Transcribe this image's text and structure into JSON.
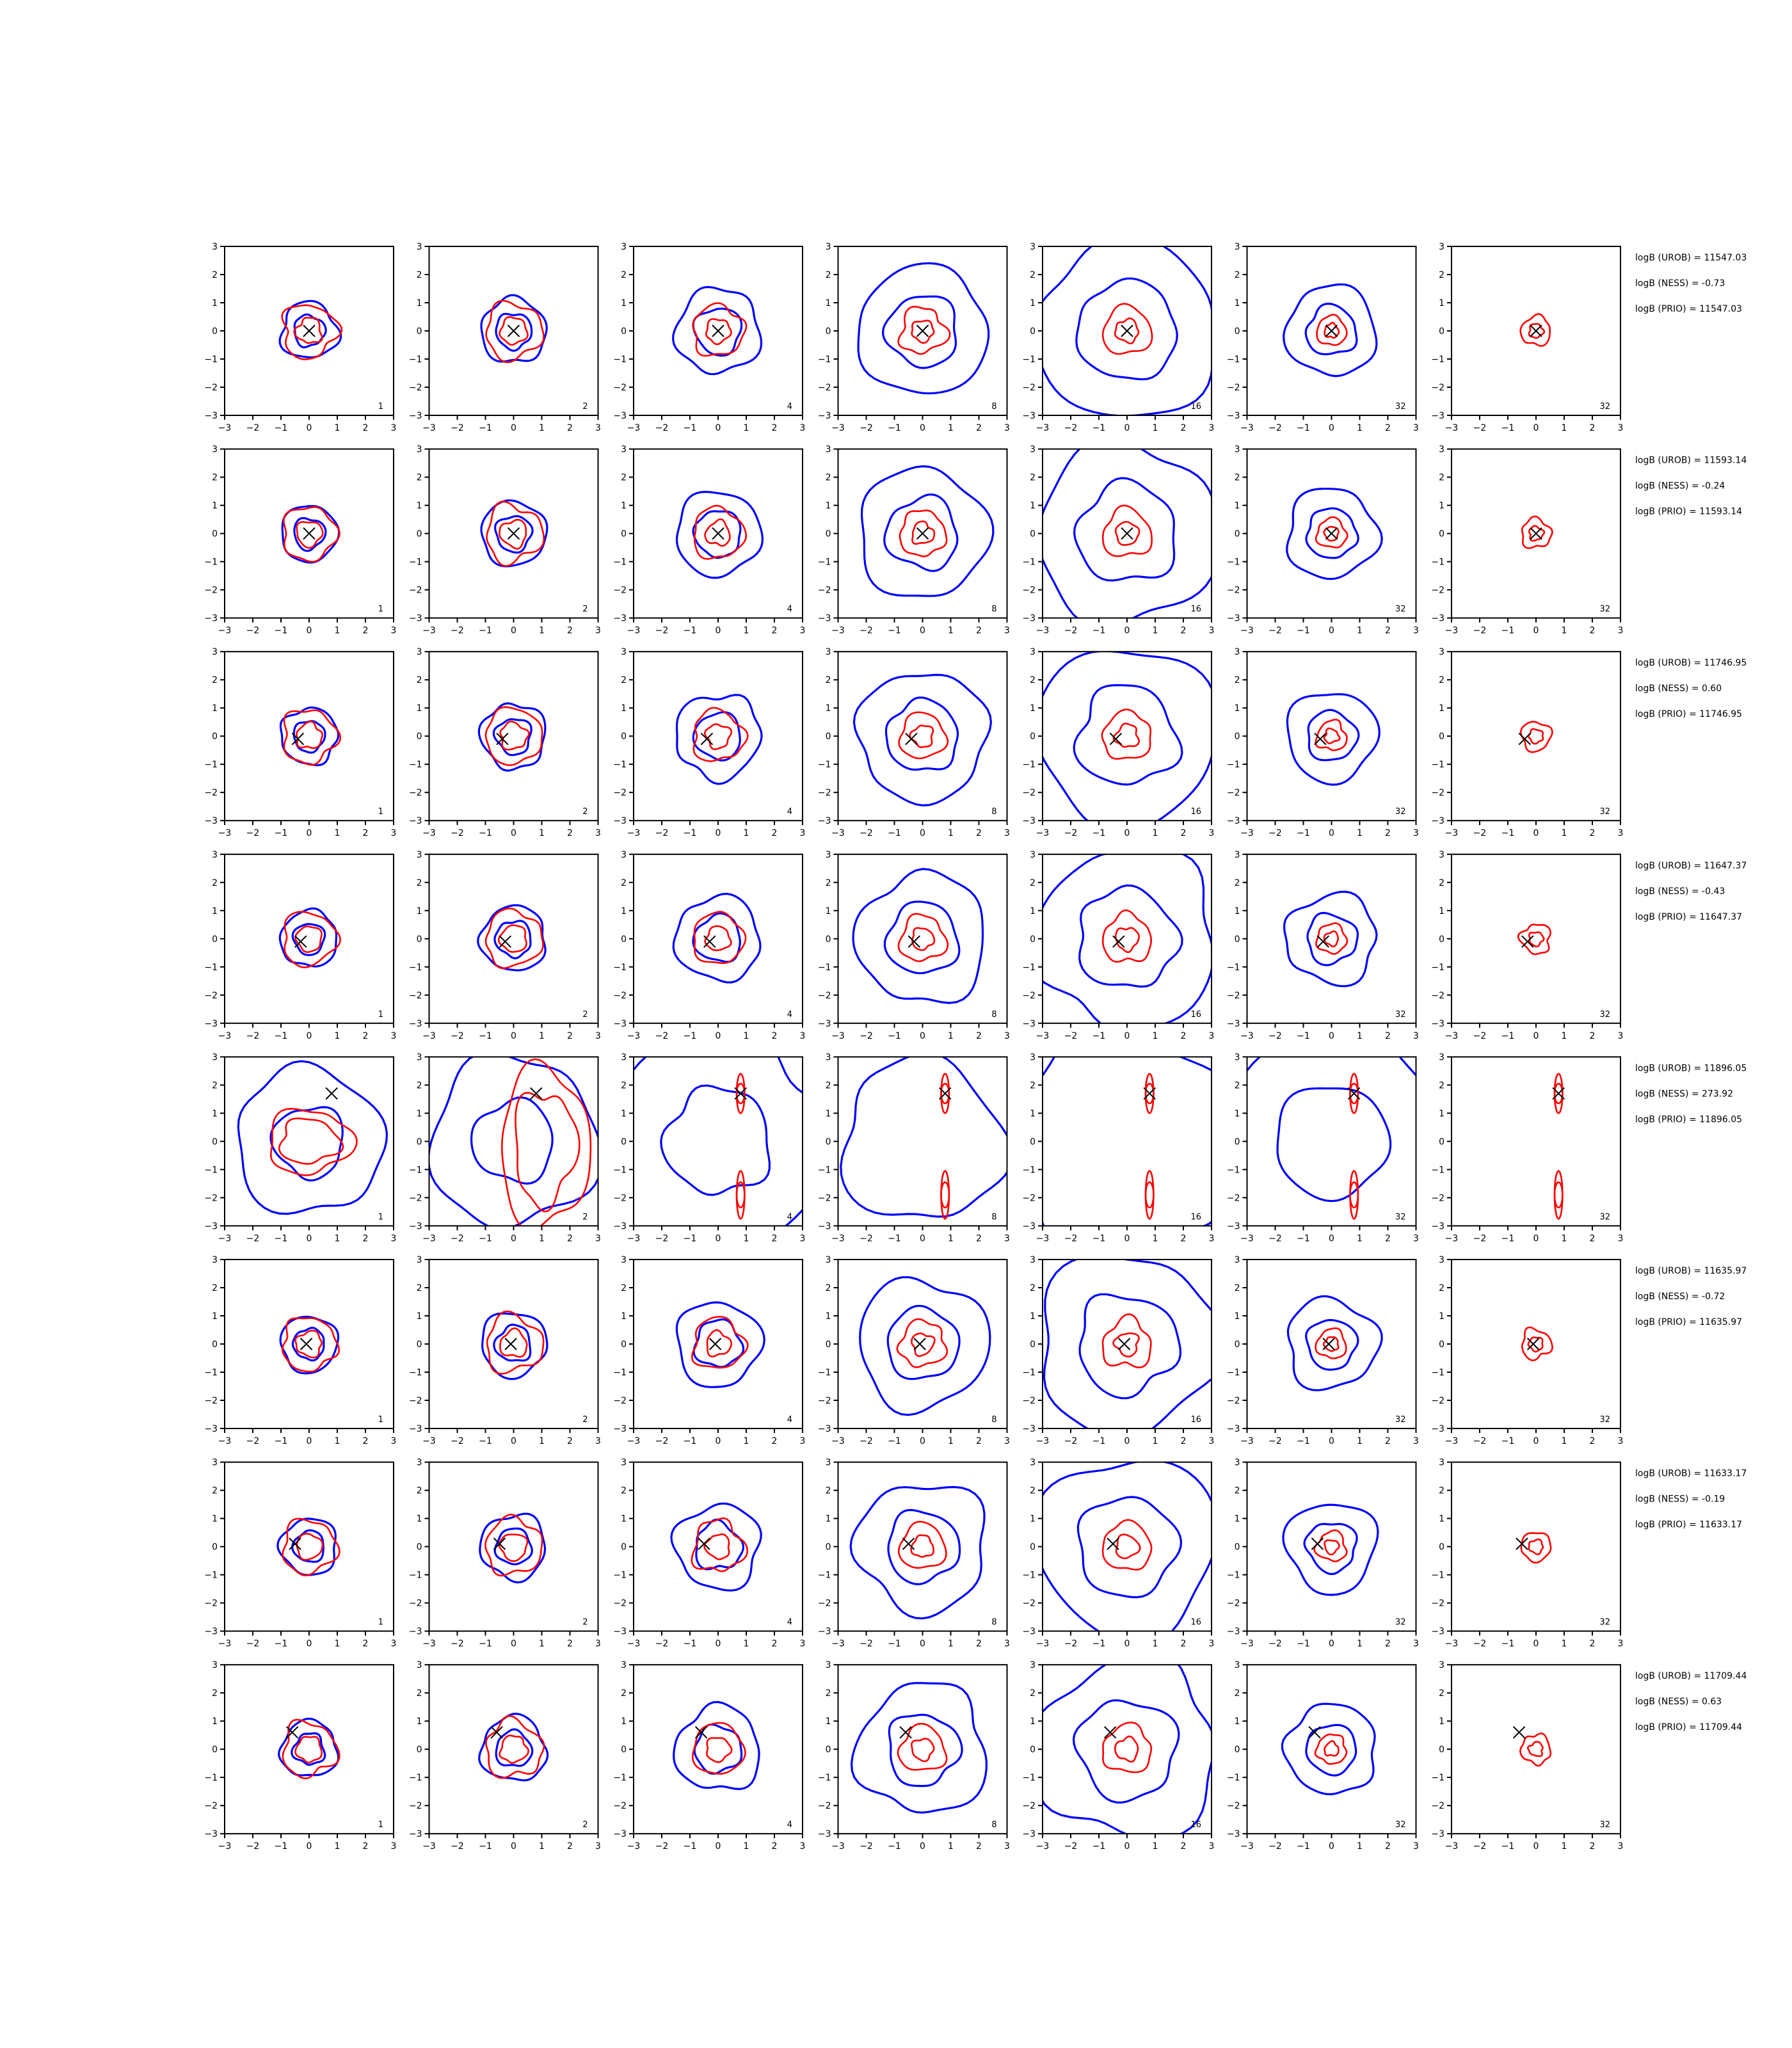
{
  "chart_data": {
    "type": "contour",
    "grid": {
      "rows": 8,
      "cols": 7
    },
    "xlim": [
      -3,
      3
    ],
    "ylim": [
      -3,
      3
    ],
    "ticks": [
      -3,
      -2,
      -1,
      0,
      1,
      2,
      3
    ],
    "tick_labels": [
      "−3",
      "−2",
      "−1",
      "0",
      "1",
      "2",
      "3"
    ],
    "colors": {
      "blue": "#0000ff",
      "red": "#ff0000",
      "marker": "#000000"
    },
    "panel_labels": [
      "1",
      "2",
      "4",
      "8",
      "16",
      "32",
      "32"
    ],
    "blue_scale": [
      1.0,
      1.15,
      1.5,
      2.3,
      3.2,
      1.6,
      0.0
    ],
    "red_scale": [
      1.0,
      1.05,
      0.95,
      0.85,
      0.9,
      0.55,
      0.55
    ],
    "rows": [
      {
        "marker": [
          0.0,
          0.0
        ],
        "stats": [
          "logB (UROB) = 11547.03",
          "logB (NESS) = -0.73",
          "logB (PRIO) = 11547.03"
        ]
      },
      {
        "marker": [
          0.0,
          0.0
        ],
        "stats": [
          "logB (UROB) = 11593.14",
          "logB (NESS) = -0.24",
          "logB (PRIO) = 11593.14"
        ]
      },
      {
        "marker": [
          -0.4,
          -0.1
        ],
        "stats": [
          "logB (UROB) = 11746.95",
          "logB (NESS) = 0.60",
          "logB (PRIO) = 11746.95"
        ]
      },
      {
        "marker": [
          -0.3,
          -0.1
        ],
        "stats": [
          "logB (UROB) = 11647.37",
          "logB (NESS) = -0.43",
          "logB (PRIO) = 11647.37"
        ]
      },
      {
        "marker": [
          0.8,
          1.7
        ],
        "stats": [
          "logB (UROB) = 11896.05",
          "logB (NESS) = 273.92",
          "logB (PRIO) = 11896.05"
        ]
      },
      {
        "marker": [
          -0.1,
          0.0
        ],
        "stats": [
          "logB (UROB) = 11635.97",
          "logB (NESS) = -0.72",
          "logB (PRIO) = 11635.97"
        ]
      },
      {
        "marker": [
          -0.5,
          0.1
        ],
        "stats": [
          "logB (UROB) = 11633.17",
          "logB (NESS) = -0.19",
          "logB (PRIO) = 11633.17"
        ]
      },
      {
        "marker": [
          -0.6,
          0.6
        ],
        "stats": [
          "logB (UROB) = 11709.44",
          "logB (NESS) = 0.63",
          "logB (PRIO) = 11709.44"
        ]
      }
    ]
  }
}
